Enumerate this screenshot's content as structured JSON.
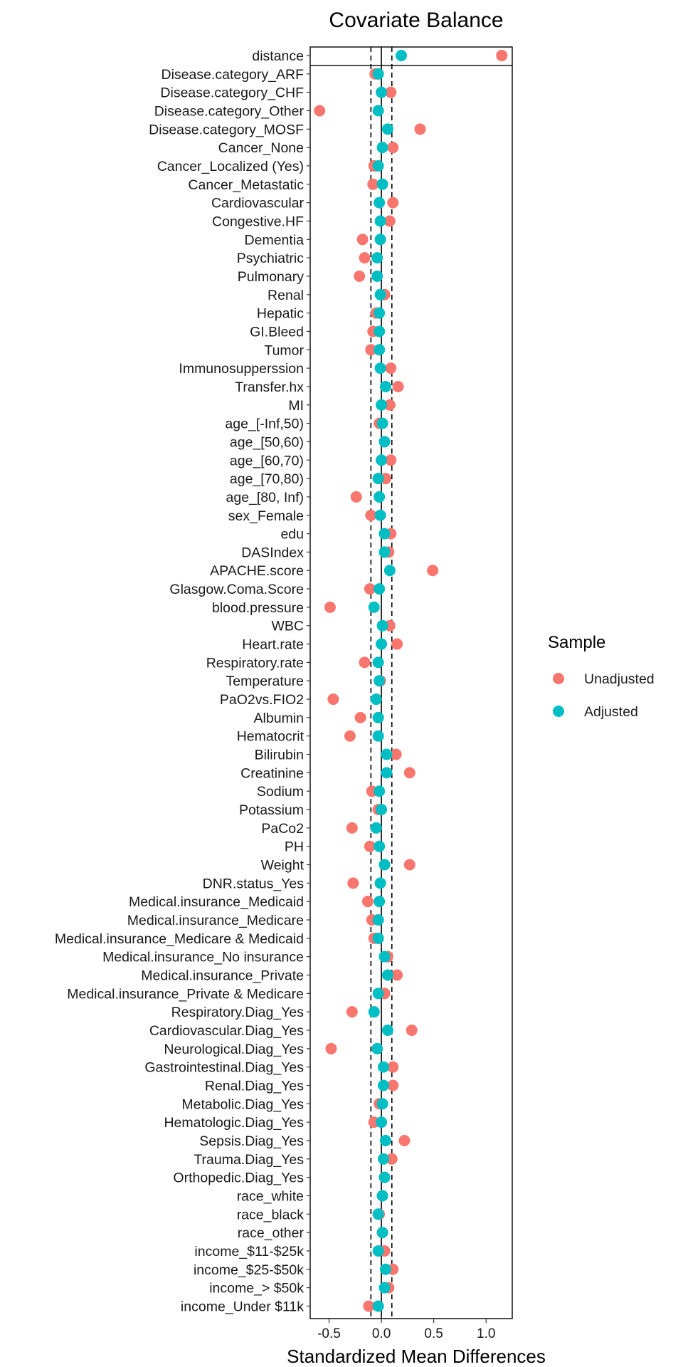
{
  "chart_data": {
    "type": "scatter",
    "title": "Covariate Balance",
    "xlabel": "Standardized Mean Differences",
    "xlim": [
      -0.68,
      1.25
    ],
    "xticks": [
      -0.5,
      0.0,
      0.5,
      1.0
    ],
    "xtick_labels": [
      "-0.5",
      "0.0",
      "0.5",
      "1.0"
    ],
    "reference_lines": {
      "solid": 0.0,
      "dashed": [
        -0.1,
        0.1
      ]
    },
    "legend": {
      "title": "Sample",
      "position": "right"
    },
    "series": [
      {
        "name": "Unadjusted",
        "color": "#F8766D"
      },
      {
        "name": "Adjusted",
        "color": "#00BFC4"
      }
    ],
    "categories": [
      "distance",
      "Disease.category_ARF",
      "Disease.category_CHF",
      "Disease.category_Other",
      "Disease.category_MOSF",
      "Cancer_None",
      "Cancer_Localized (Yes)",
      "Cancer_Metastatic",
      "Cardiovascular",
      "Congestive.HF",
      "Dementia",
      "Psychiatric",
      "Pulmonary",
      "Renal",
      "Hepatic",
      "GI.Bleed",
      "Tumor",
      "Immunosupperssion",
      "Transfer.hx",
      "MI",
      "age_[-Inf,50)",
      "age_[50,60)",
      "age_[60,70)",
      "age_[70,80)",
      "age_[80, Inf)",
      "sex_Female",
      "edu",
      "DASIndex",
      "APACHE.score",
      "Glasgow.Coma.Score",
      "blood.pressure",
      "WBC",
      "Heart.rate",
      "Respiratory.rate",
      "Temperature",
      "PaO2vs.FIO2",
      "Albumin",
      "Hematocrit",
      "Bilirubin",
      "Creatinine",
      "Sodium",
      "Potassium",
      "PaCo2",
      "PH",
      "Weight",
      "DNR.status_Yes",
      "Medical.insurance_Medicaid",
      "Medical.insurance_Medicare",
      "Medical.insurance_Medicare & Medicaid",
      "Medical.insurance_No insurance",
      "Medical.insurance_Private",
      "Medical.insurance_Private & Medicare",
      "Respiratory.Diag_Yes",
      "Cardiovascular.Diag_Yes",
      "Neurological.Diag_Yes",
      "Gastrointestinal.Diag_Yes",
      "Renal.Diag_Yes",
      "Metabolic.Diag_Yes",
      "Hematologic.Diag_Yes",
      "Sepsis.Diag_Yes",
      "Trauma.Diag_Yes",
      "Orthopedic.Diag_Yes",
      "race_white",
      "race_black",
      "race_other",
      "income_$11-$25k",
      "income_$25-$50k",
      "income_> $50k",
      "income_Under $11k"
    ],
    "unadjusted": [
      1.15,
      -0.06,
      0.09,
      -0.59,
      0.37,
      0.11,
      -0.07,
      -0.08,
      0.11,
      0.08,
      -0.18,
      -0.16,
      -0.21,
      0.03,
      -0.05,
      -0.08,
      -0.1,
      0.09,
      0.16,
      0.08,
      -0.02,
      0.03,
      0.09,
      0.04,
      -0.24,
      -0.1,
      0.09,
      0.07,
      0.49,
      -0.11,
      -0.49,
      0.08,
      0.15,
      -0.16,
      -0.01,
      -0.46,
      -0.2,
      -0.3,
      0.14,
      0.27,
      -0.09,
      -0.03,
      -0.28,
      -0.11,
      0.27,
      -0.27,
      -0.13,
      -0.09,
      -0.07,
      0.06,
      0.15,
      0.03,
      -0.28,
      0.29,
      -0.48,
      0.11,
      0.11,
      -0.02,
      -0.07,
      0.22,
      0.1,
      0.03,
      0.01,
      -0.02,
      0.01,
      0.03,
      0.11,
      0.07,
      -0.12
    ],
    "adjusted": [
      0.19,
      -0.03,
      0.0,
      -0.03,
      0.06,
      0.01,
      -0.03,
      0.01,
      -0.02,
      -0.01,
      -0.01,
      -0.04,
      -0.04,
      -0.01,
      -0.02,
      -0.02,
      -0.02,
      -0.01,
      0.04,
      0.0,
      0.01,
      0.03,
      0.0,
      -0.03,
      -0.02,
      -0.01,
      0.03,
      0.03,
      0.08,
      -0.02,
      -0.07,
      0.01,
      0.0,
      -0.03,
      -0.02,
      -0.05,
      -0.03,
      -0.03,
      0.05,
      0.05,
      -0.02,
      0.0,
      -0.05,
      -0.02,
      0.03,
      -0.01,
      -0.02,
      -0.03,
      -0.03,
      0.03,
      0.06,
      -0.03,
      -0.07,
      0.06,
      -0.04,
      0.02,
      0.02,
      0.01,
      0.0,
      0.04,
      0.02,
      0.03,
      0.01,
      -0.03,
      0.01,
      -0.03,
      0.04,
      0.03,
      -0.03
    ]
  }
}
